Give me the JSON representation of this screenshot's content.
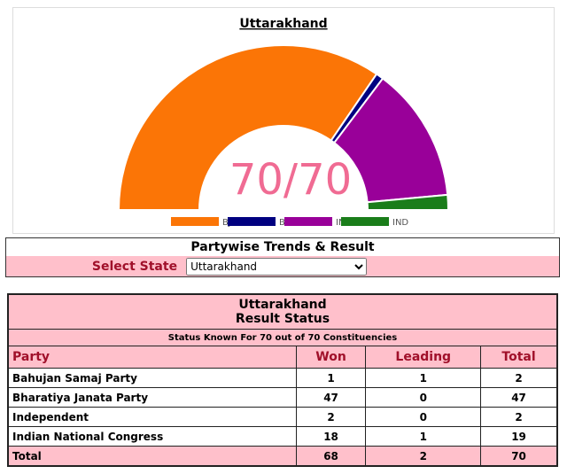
{
  "chart_data": {
    "type": "half-donut",
    "title": "Uttarakhand",
    "center_label": "70/70",
    "categories": [
      "BJP",
      "BSP",
      "INC",
      "IND"
    ],
    "values": [
      47,
      1,
      18,
      2
    ],
    "colors": [
      "#fb7506",
      "#000080",
      "#990099",
      "#1a7d1a"
    ]
  },
  "trends": {
    "title": "Partywise Trends & Result",
    "select_label": "Select State",
    "select_value": "Uttarakhand"
  },
  "table": {
    "title": "Uttarakhand",
    "subtitle": "Result Status",
    "status": "Status Known For 70 out of 70 Constituencies",
    "headers": [
      "Party",
      "Won",
      "Leading",
      "Total"
    ],
    "rows": [
      [
        "Bahujan Samaj Party",
        1,
        1,
        2
      ],
      [
        "Bharatiya Janata Party",
        47,
        0,
        47
      ],
      [
        "Independent",
        2,
        0,
        2
      ],
      [
        "Indian National Congress",
        18,
        1,
        19
      ]
    ],
    "total": [
      "Total",
      68,
      2,
      70
    ]
  }
}
